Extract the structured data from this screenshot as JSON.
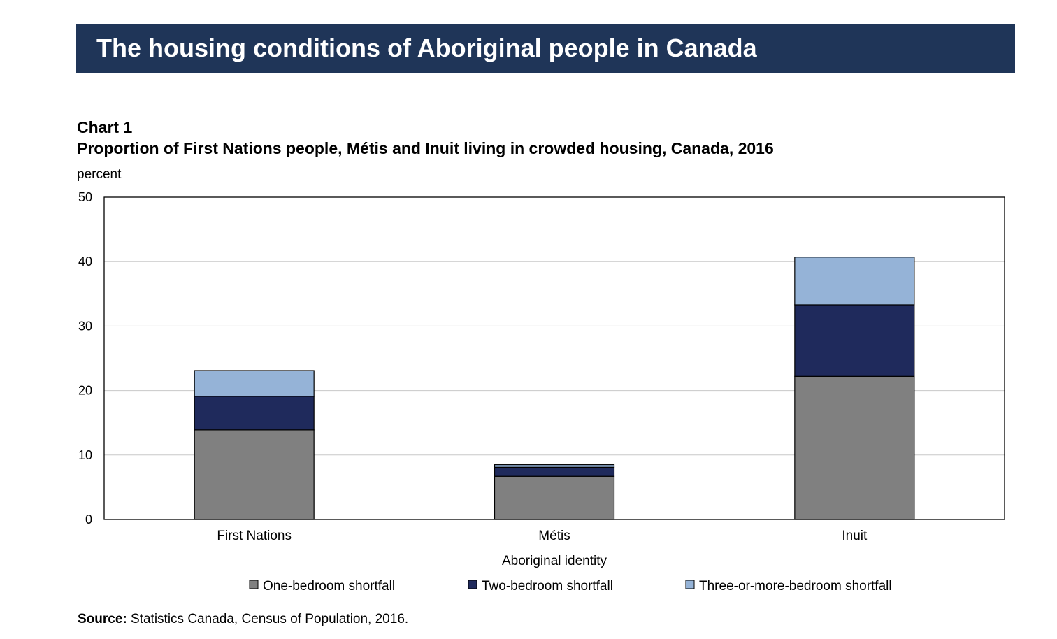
{
  "banner": {
    "title": "The housing conditions of Aboriginal people in Canada"
  },
  "colors": {
    "banner": "#1f3558",
    "one": "#808080",
    "two": "#1f2a5c",
    "three": "#95b3d7"
  },
  "chart_data": {
    "type": "bar",
    "stacked": true,
    "label": "Chart 1",
    "title": "Proportion of First Nations people, Métis and Inuit living in crowded housing, Canada, 2016",
    "ylabel": "percent",
    "xlabel": "Aboriginal identity",
    "ylim": [
      0,
      50
    ],
    "yticks": [
      0,
      10,
      20,
      30,
      40,
      50
    ],
    "grid": true,
    "legend_position": "bottom",
    "categories": [
      "First Nations",
      "Métis",
      "Inuit"
    ],
    "series": [
      {
        "name": "One-bedroom shortfall",
        "color": "#808080",
        "values": [
          13.9,
          6.7,
          22.2
        ]
      },
      {
        "name": "Two-bedroom shortfall",
        "color": "#1f2a5c",
        "values": [
          5.2,
          1.4,
          11.1
        ]
      },
      {
        "name": "Three-or-more-bedroom shortfall",
        "color": "#95b3d7",
        "values": [
          4.0,
          0.4,
          7.4
        ]
      }
    ]
  },
  "source": {
    "label": "Source:",
    "text": " Statistics Canada, Census of Population, 2016."
  }
}
